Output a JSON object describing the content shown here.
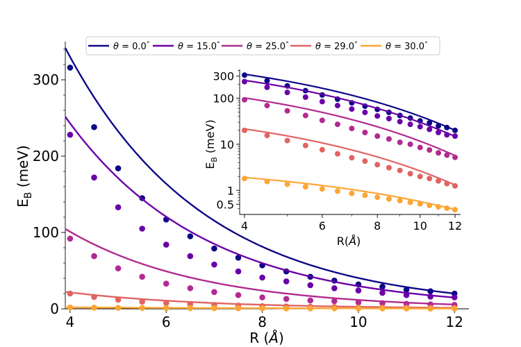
{
  "chart_data": [
    {
      "type": "line",
      "role": "main",
      "xlabel": "R (Å)",
      "ylabel": "E_B (meV)",
      "xlim": [
        3.9,
        12.3
      ],
      "ylim": [
        0,
        350
      ],
      "xticks": [
        4,
        6,
        8,
        10,
        12
      ],
      "yticks": [
        0,
        100,
        200,
        300
      ],
      "x": [
        4.0,
        4.5,
        5.0,
        5.5,
        6.0,
        6.5,
        7.0,
        7.5,
        8.0,
        8.5,
        9.0,
        9.5,
        10.0,
        10.5,
        11.0,
        11.5,
        12.0
      ],
      "series": [
        {
          "name": "θ = 0.0°",
          "color": "#0d0887",
          "points": [
            316,
            238,
            184,
            145,
            117,
            95,
            79,
            67,
            57,
            49,
            42,
            37,
            32,
            29,
            25,
            23,
            20
          ],
          "fit": {
            "A0": 330,
            "b": 0.35
          }
        },
        {
          "name": "θ = 15.0°",
          "color": "#6a00a8",
          "points": [
            228,
            172,
            133,
            105,
            84,
            69,
            58,
            49,
            41,
            36,
            31,
            27,
            24,
            21,
            18,
            16,
            15
          ],
          "fit": {
            "A0": 243,
            "b": 0.35
          }
        },
        {
          "name": "θ = 25.0°",
          "color": "#b12a90",
          "points": [
            92,
            69,
            53,
            42,
            33,
            27,
            22,
            18,
            15,
            13,
            11,
            10,
            8.5,
            7.5,
            6.5,
            5.8,
            5.2
          ],
          "fit": {
            "A0": 101,
            "b": 0.36
          }
        },
        {
          "name": "θ = 29.0°",
          "color": "#e16462",
          "points": [
            20,
            15.5,
            12,
            9.4,
            7.6,
            6.2,
            5.1,
            4.3,
            3.6,
            3.1,
            2.7,
            2.3,
            2.0,
            1.8,
            1.6,
            1.4,
            1.25
          ],
          "fit": {
            "A0": 21.5,
            "b": 0.35
          }
        },
        {
          "name": "θ = 30.0°",
          "color": "#fca636",
          "points": [
            1.8,
            1.55,
            1.35,
            1.2,
            1.07,
            0.96,
            0.86,
            0.78,
            0.71,
            0.65,
            0.6,
            0.55,
            0.51,
            0.47,
            0.44,
            0.41,
            0.38
          ],
          "fit": {
            "A0": 1.9,
            "b": 0.2
          }
        }
      ]
    },
    {
      "type": "line",
      "role": "inset",
      "scale": "log-log",
      "xlabel": "R(Å)",
      "ylabel": "E_B (meV)",
      "xlim": [
        3.9,
        12.35
      ],
      "ylim": [
        0.3,
        420
      ],
      "xticks": [
        4,
        6,
        8,
        10,
        12
      ],
      "yticks": [
        0.5,
        1,
        10,
        100,
        300
      ],
      "ytick_labels": [
        "0.5",
        "1",
        "10",
        "100",
        "300"
      ]
    }
  ],
  "legend": {
    "placement": "top",
    "entries": [
      {
        "prefix": "θ = ",
        "value": "0.0",
        "unit": "°"
      },
      {
        "prefix": "θ = ",
        "value": "15.0",
        "unit": "°"
      },
      {
        "prefix": "θ = ",
        "value": "25.0",
        "unit": "°"
      },
      {
        "prefix": "θ = ",
        "value": "29.0",
        "unit": "°"
      },
      {
        "prefix": "θ = ",
        "value": "30.0",
        "unit": "°"
      }
    ]
  },
  "labels": {
    "main_xlabel_text": "R (",
    "main_xlabel_unit": "Å",
    "main_xlabel_close": ")",
    "main_ylabel_text": "E",
    "main_ylabel_sub": "B",
    "main_ylabel_unit": " (meV)",
    "inset_xlabel_text": "R(",
    "inset_xlabel_unit": "Å",
    "inset_xlabel_close": ")",
    "inset_ylabel_text": "E",
    "inset_ylabel_sub": "B",
    "inset_ylabel_unit": " (meV)"
  }
}
